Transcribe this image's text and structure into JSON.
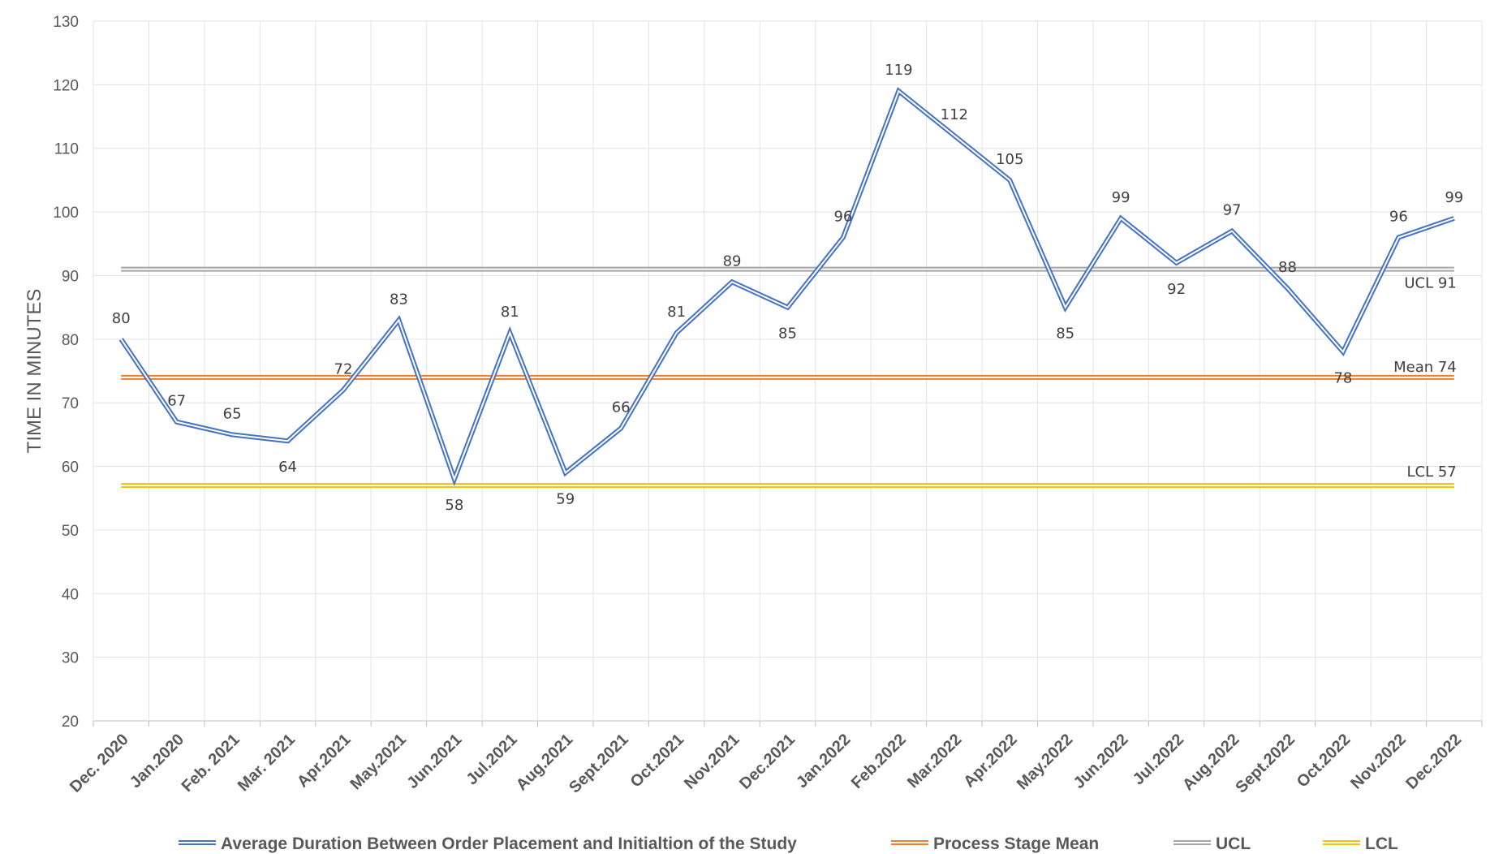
{
  "chart_data": {
    "type": "line",
    "ylabel": "TIME IN MINUTES",
    "ylim": [
      20,
      130
    ],
    "yticks": [
      "20",
      "30",
      "40",
      "50",
      "60",
      "70",
      "80",
      "90",
      "100",
      "110",
      "120",
      "130"
    ],
    "grid": true,
    "legend_position": "bottom",
    "categories": [
      "Dec. 2020",
      "Jan.2020",
      "Feb. 2021",
      "Mar. 2021",
      "Apr.2021",
      "May.2021",
      "Jun.2021",
      "Jul.2021",
      "Aug.2021",
      "Sept.2021",
      "Oct.2021",
      "Nov.2021",
      "Dec.2021",
      "Jan.2022",
      "Feb.2022",
      "Mar.2022",
      "Apr.2022",
      "May.2022",
      "Jun.2022",
      "Jul.2022",
      "Aug.2022",
      "Sept.2022",
      "Oct.2022",
      "Nov.2022",
      "Dec.2022"
    ],
    "series": [
      {
        "name": "Average Duration Between Order Placement and Initialtion of the Study",
        "color": "#4472C4",
        "values": [
          80,
          67,
          65,
          64,
          72,
          83,
          58,
          81,
          59,
          66,
          81,
          89,
          85,
          96,
          119,
          112,
          105,
          85,
          99,
          92,
          97,
          88,
          78,
          96,
          99
        ],
        "labels": [
          "80",
          "67",
          "65",
          "64",
          "72",
          "83",
          "58",
          "81",
          "59",
          "66",
          "81",
          "89",
          "85",
          "96",
          "119",
          "112",
          "105",
          "85",
          "99",
          "92",
          "97",
          "88",
          "78",
          "96",
          "99"
        ]
      },
      {
        "name": "Process Stage Mean",
        "color": "#ED7D31",
        "value": 74,
        "label_name": "Mean",
        "label_value": "74"
      },
      {
        "name": "UCL",
        "color": "#A5A5A5",
        "value": 91,
        "label_name": "UCL",
        "label_value": "91"
      },
      {
        "name": "LCL",
        "color": "#FFC000",
        "value": 57,
        "label_name": "LCL",
        "label_value": "57"
      }
    ]
  }
}
